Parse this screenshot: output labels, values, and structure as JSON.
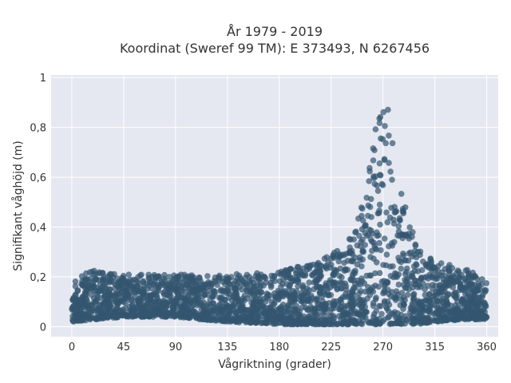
{
  "chart_data": {
    "type": "scatter",
    "title": [
      "År 1979 - 2019",
      "Koordinat (Sweref 99 TM): E 373493, N 6267456"
    ],
    "xlabel": "Vågriktning (grader)",
    "ylabel": "Signifikant våghöjd (m)",
    "xlim": [
      -18,
      370
    ],
    "ylim": [
      -0.04,
      1.01
    ],
    "xticks": [
      0,
      45,
      90,
      135,
      180,
      225,
      270,
      315,
      360
    ],
    "xtick_labels": [
      "0",
      "45",
      "90",
      "135",
      "180",
      "225",
      "270",
      "315",
      "360"
    ],
    "yticks": [
      0,
      0.2,
      0.4,
      0.6,
      0.8,
      1
    ],
    "ytick_labels": [
      "0",
      "0,2",
      "0,4",
      "0,6",
      "0,8",
      "1"
    ],
    "grid": true,
    "legend": false,
    "marker_color": "#33566f",
    "plot_background": "#e5e8f1",
    "series": [
      {
        "description_points": [
          {
            "x": 0,
            "y_min": 0.02,
            "y_max": 0.19
          },
          {
            "x": 20,
            "y_min": 0.03,
            "y_max": 0.23
          },
          {
            "x": 45,
            "y_min": 0.04,
            "y_max": 0.21
          },
          {
            "x": 90,
            "y_min": 0.04,
            "y_max": 0.21
          },
          {
            "x": 135,
            "y_min": 0.02,
            "y_max": 0.21
          },
          {
            "x": 180,
            "y_min": 0.01,
            "y_max": 0.22
          },
          {
            "x": 210,
            "y_min": 0.01,
            "y_max": 0.26
          },
          {
            "x": 225,
            "y_min": 0.01,
            "y_max": 0.29
          },
          {
            "x": 240,
            "y_min": 0.01,
            "y_max": 0.34
          },
          {
            "x": 255,
            "y_min": 0.01,
            "y_max": 0.55
          },
          {
            "x": 262,
            "y_min": 0.01,
            "y_max": 0.75
          },
          {
            "x": 270,
            "y_min": 0.01,
            "y_max": 0.97
          },
          {
            "x": 278,
            "y_min": 0.01,
            "y_max": 0.8
          },
          {
            "x": 285,
            "y_min": 0.01,
            "y_max": 0.55
          },
          {
            "x": 300,
            "y_min": 0.01,
            "y_max": 0.32
          },
          {
            "x": 315,
            "y_min": 0.02,
            "y_max": 0.26
          },
          {
            "x": 340,
            "y_min": 0.03,
            "y_max": 0.24
          },
          {
            "x": 360,
            "y_min": 0.03,
            "y_max": 0.19
          }
        ]
      }
    ]
  }
}
